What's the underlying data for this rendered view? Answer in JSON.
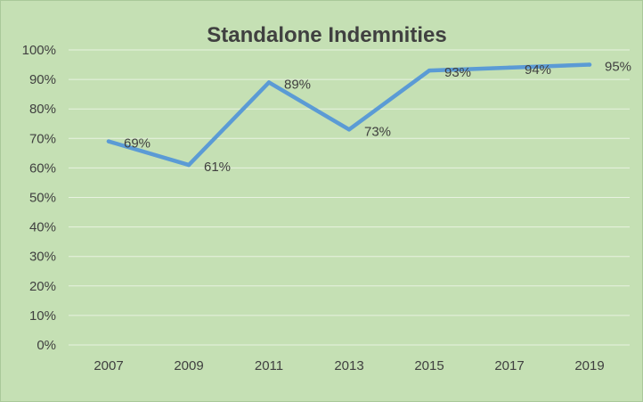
{
  "chart_data": {
    "type": "line",
    "title": "Standalone Indemnities",
    "xlabel": "",
    "ylabel": "",
    "categories": [
      "2007",
      "2009",
      "2011",
      "2013",
      "2015",
      "2017",
      "2019"
    ],
    "series": [
      {
        "values": [
          69,
          61,
          89,
          73,
          93,
          94,
          95
        ],
        "data_labels": [
          "69%",
          "61%",
          "89%",
          "73%",
          "93%",
          "94%",
          "95%"
        ]
      }
    ],
    "ylim": [
      0,
      100
    ],
    "y_ticks": [
      0,
      10,
      20,
      30,
      40,
      50,
      60,
      70,
      80,
      90,
      100
    ],
    "y_tick_labels": [
      "0%",
      "10%",
      "20%",
      "30%",
      "40%",
      "50%",
      "60%",
      "70%",
      "80%",
      "90%",
      "100%"
    ],
    "grid": true,
    "legend": "none",
    "colors": {
      "background": "#c5e0b4",
      "line": "#5b9bd5",
      "gridline": "#e8f2e0",
      "text": "#404040"
    }
  }
}
